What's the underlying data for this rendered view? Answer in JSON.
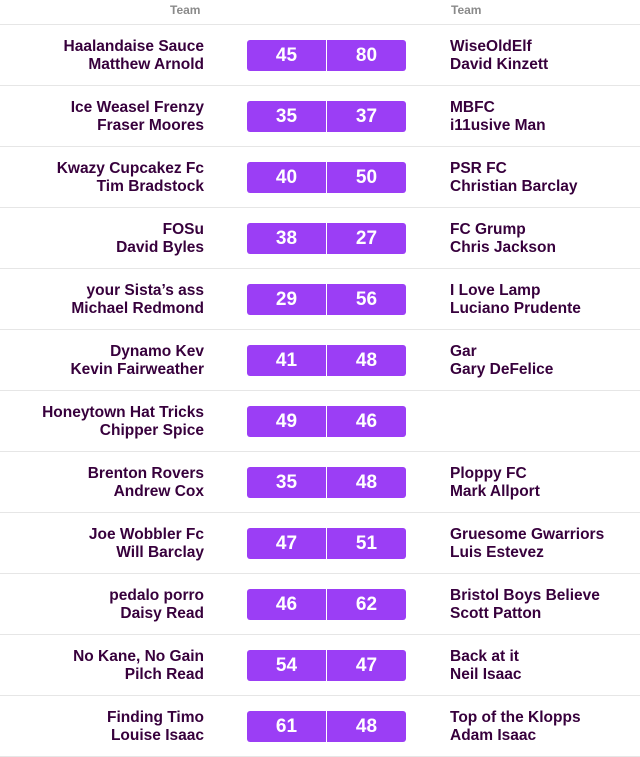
{
  "header": {
    "home_label": "Team",
    "away_label": "Team"
  },
  "fixtures": [
    {
      "home_team": "Haalandaise Sauce",
      "home_manager": "Matthew Arnold",
      "home_score": "45",
      "away_score": "80",
      "away_team": "WiseOldElf",
      "away_manager": "David Kinzett"
    },
    {
      "home_team": "Ice Weasel Frenzy",
      "home_manager": "Fraser Moores",
      "home_score": "35",
      "away_score": "37",
      "away_team": "MBFC",
      "away_manager": "i11usive Man"
    },
    {
      "home_team": "Kwazy Cupcakez Fc",
      "home_manager": "Tim Bradstock",
      "home_score": "40",
      "away_score": "50",
      "away_team": "PSR FC",
      "away_manager": "Christian Barclay"
    },
    {
      "home_team": "FOSu",
      "home_manager": "David Byles",
      "home_score": "38",
      "away_score": "27",
      "away_team": "FC Grump",
      "away_manager": "Chris Jackson"
    },
    {
      "home_team": "your Sista’s ass",
      "home_manager": "Michael Redmond",
      "home_score": "29",
      "away_score": "56",
      "away_team": "I Love Lamp",
      "away_manager": "Luciano Prudente"
    },
    {
      "home_team": "Dynamo Kev",
      "home_manager": "Kevin Fairweather",
      "home_score": "41",
      "away_score": "48",
      "away_team": "Gar",
      "away_manager": "Gary DeFelice"
    },
    {
      "home_team": "Honeytown Hat Tricks",
      "home_manager": "Chipper Spice",
      "home_score": "49",
      "away_score": "46",
      "away_team": "",
      "away_manager": ""
    },
    {
      "home_team": "Brenton Rovers",
      "home_manager": "Andrew Cox",
      "home_score": "35",
      "away_score": "48",
      "away_team": "Ploppy FC",
      "away_manager": "Mark Allport"
    },
    {
      "home_team": "Joe Wobbler Fc",
      "home_manager": "Will Barclay",
      "home_score": "47",
      "away_score": "51",
      "away_team": "Gruesome Gwarriors",
      "away_manager": "Luis Estevez"
    },
    {
      "home_team": "pedalo porro",
      "home_manager": "Daisy Read",
      "home_score": "46",
      "away_score": "62",
      "away_team": "Bristol Boys Believe",
      "away_manager": "Scott Patton"
    },
    {
      "home_team": "No Kane, No Gain",
      "home_manager": "Pilch Read",
      "home_score": "54",
      "away_score": "47",
      "away_team": "Back at it",
      "away_manager": "Neil Isaac"
    },
    {
      "home_team": "Finding Timo",
      "home_manager": "Louise Isaac",
      "home_score": "61",
      "away_score": "48",
      "away_team": "Top of the Klopps",
      "away_manager": "Adam Isaac"
    }
  ]
}
